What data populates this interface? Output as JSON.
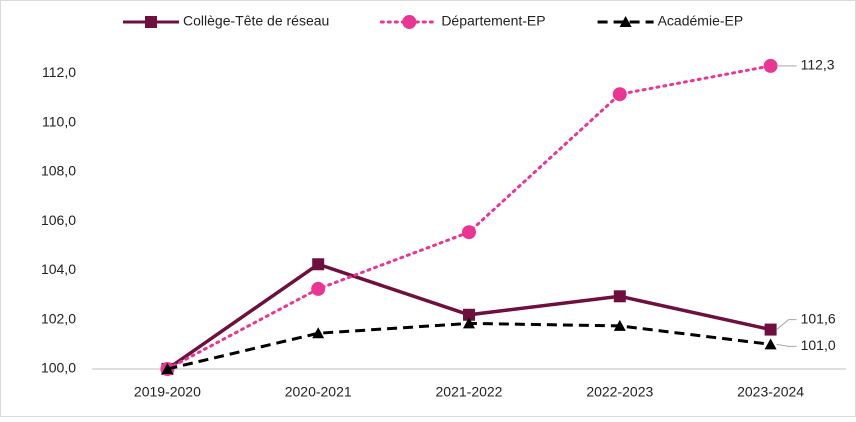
{
  "chart_data": {
    "type": "line",
    "categories": [
      "2019-2020",
      "2020-2021",
      "2021-2022",
      "2022-2023",
      "2023-2024"
    ],
    "series": [
      {
        "name": "Collège-Tête de réseau",
        "color": "#6e0f3d",
        "style": "solid",
        "marker": "square",
        "values": [
          100,
          104.25,
          102.2,
          102.95,
          101.6
        ],
        "value_labels": [
          null,
          null,
          null,
          null,
          "101,6"
        ]
      },
      {
        "name": "Département-EP",
        "color": "#ea3592",
        "style": "dotted",
        "marker": "circle",
        "values": [
          100,
          103.25,
          105.55,
          111.15,
          112.3
        ],
        "value_labels": [
          null,
          null,
          null,
          null,
          "112,3"
        ]
      },
      {
        "name": "Académie-EP",
        "color": "#000000",
        "style": "dashed",
        "marker": "triangle",
        "values": [
          100,
          101.45,
          101.85,
          101.75,
          101.0
        ],
        "value_labels": [
          null,
          null,
          null,
          null,
          "101,0"
        ]
      }
    ],
    "ylim": [
      100,
      114
    ],
    "yticks": [
      {
        "value": 100,
        "label": "100,0"
      },
      {
        "value": 102,
        "label": "102,0"
      },
      {
        "value": 104,
        "label": "104,0"
      },
      {
        "value": 106,
        "label": "106,0"
      },
      {
        "value": 108,
        "label": "108,0"
      },
      {
        "value": 110,
        "label": "110,0"
      },
      {
        "value": 112,
        "label": "112,0"
      }
    ],
    "legend": "top"
  }
}
